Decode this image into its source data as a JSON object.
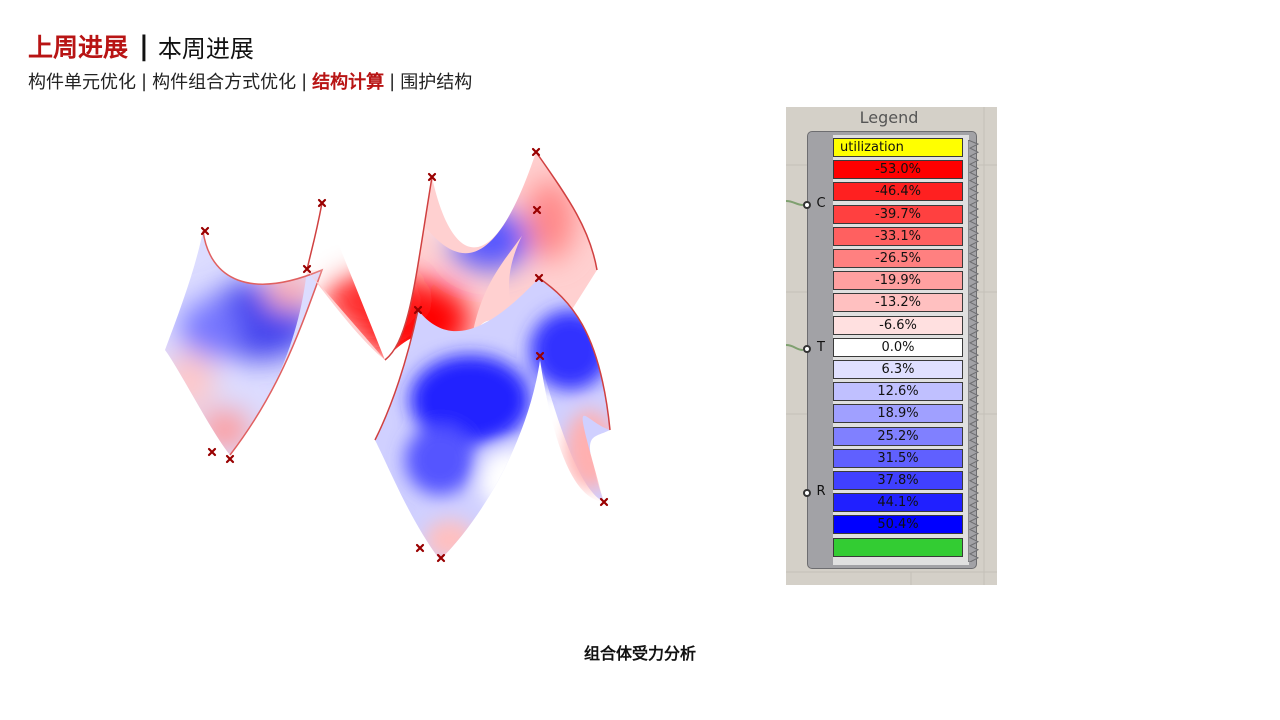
{
  "header": {
    "title_active": "上周进展",
    "title_separator": "|",
    "title_inactive": "本周进展"
  },
  "subnav": {
    "separator": "|",
    "items": [
      {
        "label": "构件单元优化",
        "active": false
      },
      {
        "label": "构件组合方式优化",
        "active": false
      },
      {
        "label": "结构计算",
        "active": true
      },
      {
        "label": "围护结构",
        "active": false
      }
    ]
  },
  "legend": {
    "title": "Legend",
    "ports": [
      "C",
      "T",
      "R"
    ],
    "entries": [
      {
        "label": "utilization",
        "color": "#ffff00"
      },
      {
        "label": "-53.0%",
        "color": "#ff0000"
      },
      {
        "label": "-46.4%",
        "color": "#ff2020"
      },
      {
        "label": "-39.7%",
        "color": "#ff4040"
      },
      {
        "label": "-33.1%",
        "color": "#ff6060"
      },
      {
        "label": "-26.5%",
        "color": "#ff8080"
      },
      {
        "label": "-19.9%",
        "color": "#ffa0a0"
      },
      {
        "label": "-13.2%",
        "color": "#ffc0c0"
      },
      {
        "label": "-6.6%",
        "color": "#ffe0e0"
      },
      {
        "label": "0.0%",
        "color": "#ffffff"
      },
      {
        "label": "6.3%",
        "color": "#e0e0ff"
      },
      {
        "label": "12.6%",
        "color": "#c0c0ff"
      },
      {
        "label": "18.9%",
        "color": "#a0a0ff"
      },
      {
        "label": "25.2%",
        "color": "#8080ff"
      },
      {
        "label": "31.5%",
        "color": "#6060ff"
      },
      {
        "label": "37.8%",
        "color": "#4040ff"
      },
      {
        "label": "44.1%",
        "color": "#2020ff"
      },
      {
        "label": "50.4%",
        "color": "#0000ff"
      },
      {
        "label": "",
        "color": "#33cc33"
      }
    ]
  },
  "caption": "组合体受力分析"
}
